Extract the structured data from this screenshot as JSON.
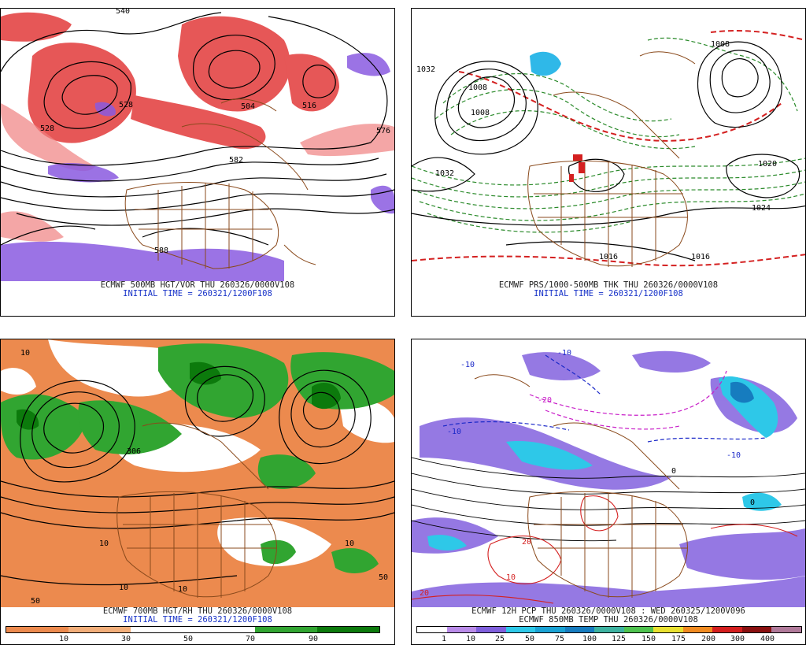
{
  "panels": [
    {
      "id": "500mb",
      "caption_line1": "ECMWF 500MB HGT/VOR THU 260326/0000V108",
      "caption_line2": "INITIAL TIME = 260321/1200F108",
      "contour_labels": [
        "540",
        "528",
        "528",
        "504",
        "516",
        "576",
        "588",
        "582"
      ]
    },
    {
      "id": "pressure",
      "caption_line1": "ECMWF PRS/1000-500MB THK THU 260326/0000V108",
      "caption_line2": "INITIAL TIME = 260321/1200F108",
      "contour_labels": [
        "1032",
        "1008",
        "1008",
        "1032",
        "1024",
        "1016",
        "1016",
        "1008",
        "1020"
      ]
    },
    {
      "id": "700mb",
      "caption_line1": "ECMWF 700MB HGT/RH THU 260326/0000V108",
      "caption_line2": "INITIAL TIME = 260321/1200F108",
      "contour_labels": [
        "10",
        "10",
        "10",
        "50",
        "50",
        "10",
        "306",
        "10"
      ]
    },
    {
      "id": "850temp",
      "caption_line1": "ECMWF 12H PCP THU 260326/0000V108 : WED 260325/1200V096",
      "caption_line2": "ECMWF 850MB TEMP THU 260326/0000V108",
      "contour_labels": [
        "-10",
        "-10",
        "-20",
        "-10",
        "-10",
        "0",
        "10",
        "20",
        "20",
        "0"
      ]
    }
  ],
  "rh_colorbar": {
    "labels": [
      "10",
      "30",
      "50",
      "70",
      "90"
    ],
    "colors": [
      "#ec8a4e",
      "#f2ae7a",
      "#ffffff",
      "#ffffff",
      "#31a531",
      "#0c7a0c"
    ]
  },
  "pcp_colorbar": {
    "labels": [
      "1",
      "10",
      "25",
      "50",
      "75",
      "100",
      "125",
      "150",
      "175",
      "200",
      "300",
      "400"
    ],
    "colors": [
      "#ffffff",
      "#b98be8",
      "#7f5fdc",
      "#2ec8e8",
      "#1aa2d4",
      "#167cbf",
      "#3db2a0",
      "#4fc24f",
      "#e8e030",
      "#f08a20",
      "#d41e1e",
      "#8a1010",
      "#b07a9a"
    ]
  }
}
